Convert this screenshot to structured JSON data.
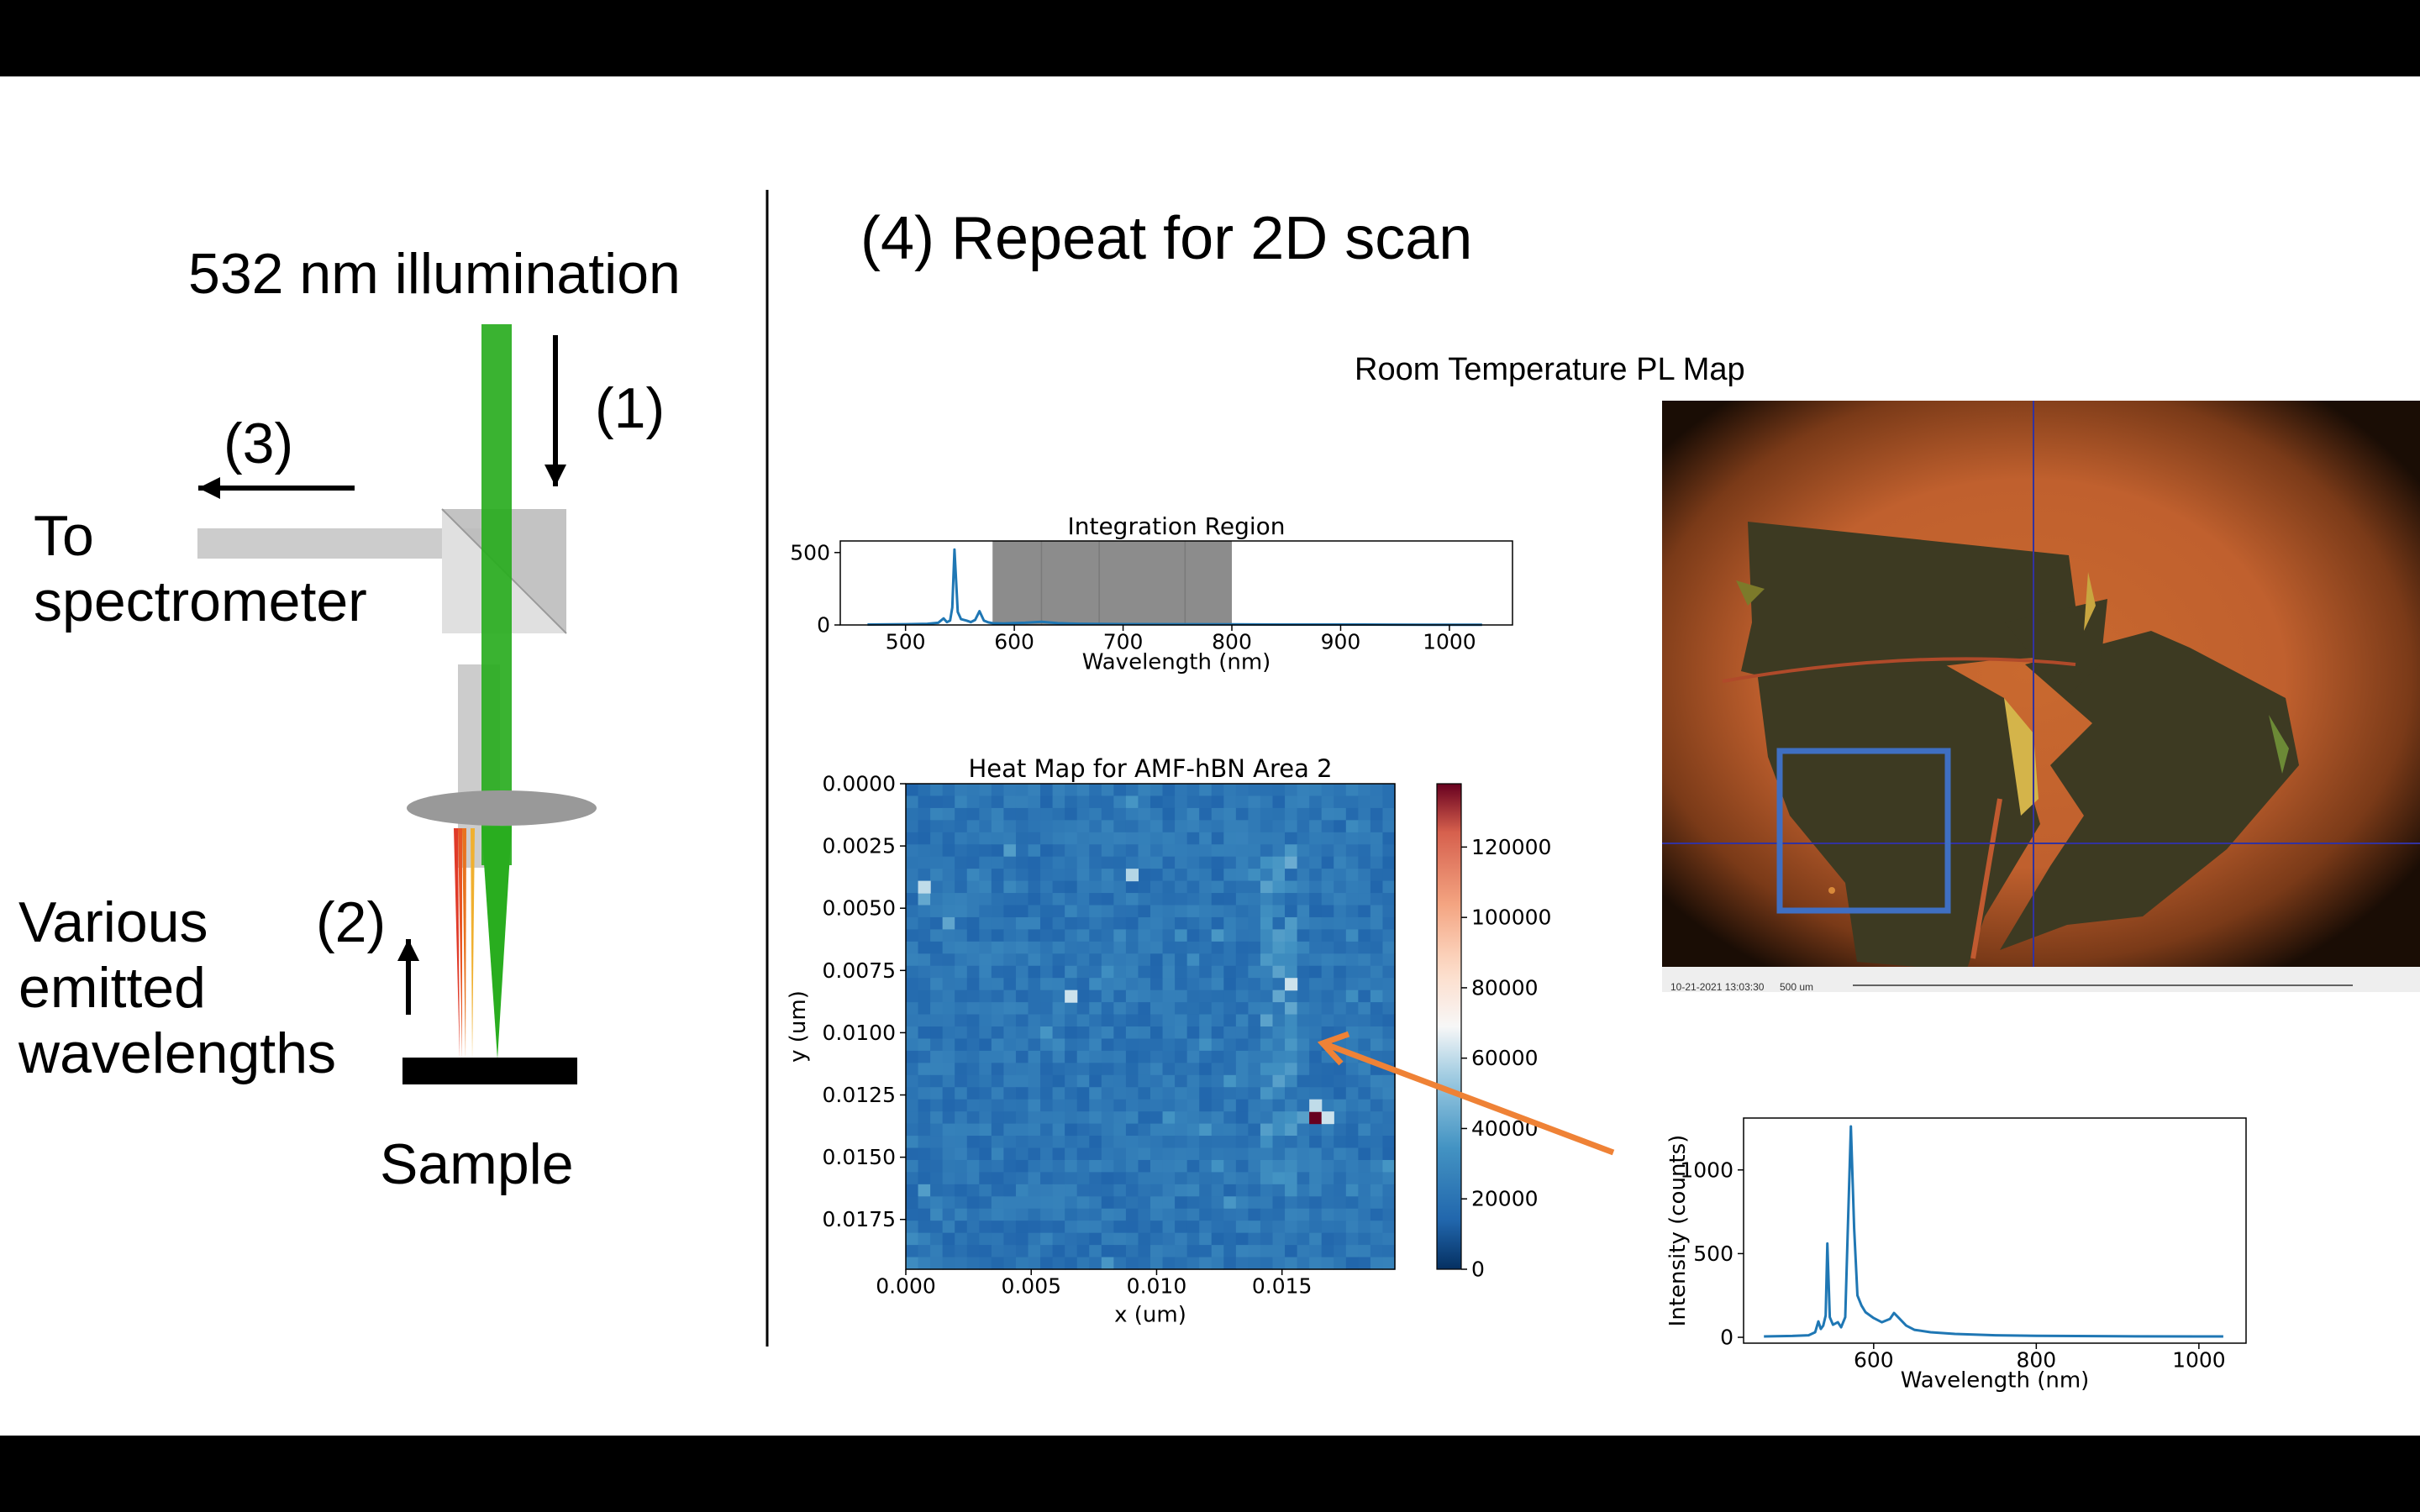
{
  "left_diagram": {
    "illumination_label": "532 nm illumination",
    "step1": "(1)",
    "step2": "(2)",
    "step3": "(3)",
    "to_label_line1": "To",
    "to_label_line2": "spectrometer",
    "emitted_line1": "Various",
    "emitted_line2": "emitted",
    "emitted_line3": "wavelengths",
    "sample_label": "Sample",
    "colors": {
      "laser": "#29ad1f",
      "beam_gray": "#cccccc",
      "lens": "#999999"
    }
  },
  "right_panel": {
    "heading": "(4) Repeat for 2D scan",
    "map_title": "Room Temperature PL Map",
    "micrograph": {
      "timestamp": "10-21-2021 13:03:30",
      "scale_label": "500 um",
      "colors": {
        "background": "#c0602e",
        "flake": "#3d3a22",
        "box": "#3f6fc2",
        "crosshair": "#3232a0"
      }
    }
  },
  "chart_data": [
    {
      "type": "line",
      "title": "Integration Region",
      "xlabel": "Wavelength (nm)",
      "ylabel": "",
      "xlim": [
        440,
        1058
      ],
      "ylim": [
        0,
        580
      ],
      "xticks": [
        500,
        600,
        700,
        800,
        900,
        1000
      ],
      "yticks": [
        0,
        500
      ],
      "highlight_region": [
        580,
        800
      ],
      "highlight_dividers": [
        625,
        678,
        757
      ],
      "x": [
        465,
        500,
        520,
        530,
        535,
        538,
        541,
        543,
        545,
        548,
        551,
        556,
        560,
        564,
        568,
        572,
        576,
        580,
        590,
        610,
        625,
        640,
        660,
        700,
        760,
        800,
        860,
        920,
        980,
        1030
      ],
      "y": [
        3,
        5,
        8,
        15,
        45,
        20,
        30,
        120,
        520,
        90,
        40,
        30,
        20,
        35,
        95,
        30,
        18,
        12,
        10,
        15,
        22,
        12,
        8,
        6,
        5,
        4,
        3,
        3,
        2,
        2
      ],
      "color": "#1f77b4"
    },
    {
      "type": "heatmap",
      "title": "Heat Map for AMF-hBN Area 2",
      "xlabel": "x (um)",
      "ylabel": "y (um)",
      "xticks": [
        "0.000",
        "0.005",
        "0.010",
        "0.015"
      ],
      "yticks": [
        "0.0000",
        "0.0025",
        "0.0050",
        "0.0075",
        "0.0100",
        "0.0125",
        "0.0150",
        "0.0175"
      ],
      "xlim": [
        0,
        0.0195
      ],
      "ylim": [
        0.0195,
        0
      ],
      "grid_size": [
        40,
        40
      ],
      "colorbar_ticks": [
        0,
        20000,
        40000,
        60000,
        80000,
        100000,
        120000
      ],
      "colorbar_range": [
        0,
        138000
      ],
      "colormap": "RdBu_r",
      "background_level": 25000,
      "hot_spots": [
        {
          "x": 0.0159,
          "y": 0.0134,
          "value": 138000
        },
        {
          "x": 0.0164,
          "y": 0.0134,
          "value": 62000
        },
        {
          "x": 0.0159,
          "y": 0.0129,
          "value": 60000
        },
        {
          "x": 0.0007,
          "y": 0.0038,
          "value": 60000
        },
        {
          "x": 0.0061,
          "y": 0.0081,
          "value": 62000
        },
        {
          "x": 0.0151,
          "y": 0.0078,
          "value": 62000
        },
        {
          "x": 0.009,
          "y": 0.0035,
          "value": 58000
        }
      ],
      "bright_stripe": {
        "x": 0.0148,
        "from_y": 0.0015,
        "to_y": 0.0165
      }
    },
    {
      "type": "line",
      "title": "",
      "xlabel": "Wavelength (nm)",
      "ylabel": "Intensity (counts)",
      "xlim": [
        440,
        1058
      ],
      "ylim": [
        -35,
        1310
      ],
      "xticks": [
        600,
        800,
        1000
      ],
      "yticks": [
        0,
        500,
        1000
      ],
      "x": [
        465,
        500,
        520,
        528,
        532,
        535,
        538,
        541,
        543,
        546,
        550,
        556,
        560,
        565,
        568,
        572,
        576,
        580,
        585,
        590,
        600,
        610,
        620,
        625,
        630,
        640,
        650,
        670,
        700,
        750,
        800,
        900,
        1000,
        1030
      ],
      "y": [
        5,
        8,
        12,
        30,
        95,
        50,
        70,
        130,
        560,
        120,
        75,
        90,
        60,
        120,
        620,
        1260,
        650,
        250,
        190,
        150,
        115,
        90,
        110,
        145,
        120,
        70,
        45,
        30,
        20,
        12,
        9,
        6,
        5,
        5
      ],
      "color": "#1f77b4"
    }
  ]
}
